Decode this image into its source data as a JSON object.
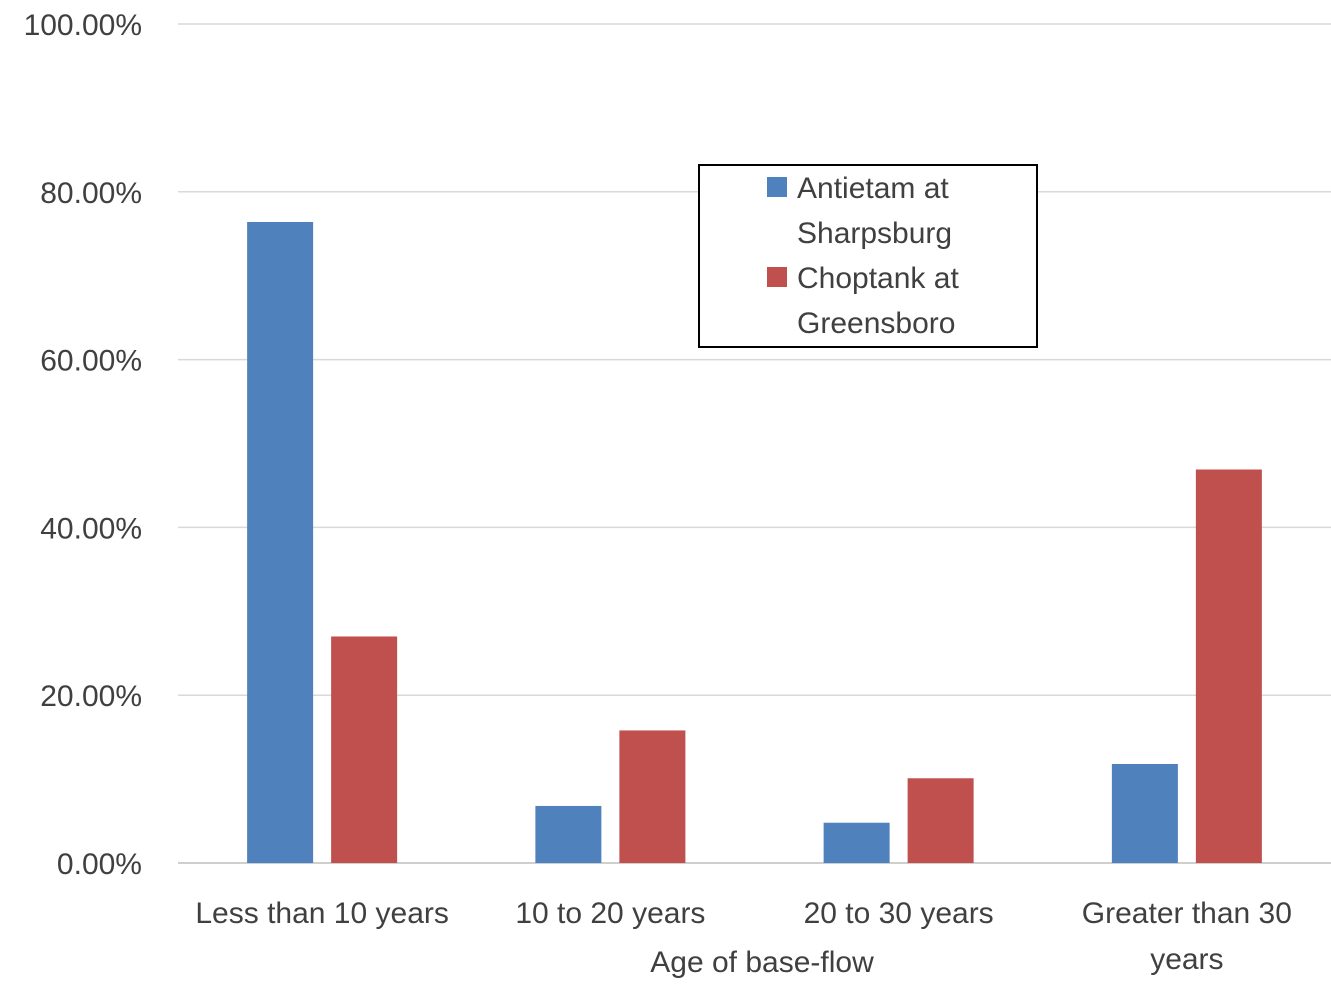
{
  "chart_data": {
    "type": "bar",
    "title": "",
    "xlabel": "Age of base-flow",
    "ylabel": "",
    "categories": [
      [
        "Less than 10 years"
      ],
      [
        "10 to 20 years"
      ],
      [
        "20 to 30 years"
      ],
      [
        "Greater than 30",
        "years"
      ]
    ],
    "series": [
      {
        "name": [
          "Antietam at",
          "Sharpsburg"
        ],
        "color": "#4F81BD",
        "values": [
          76.4,
          6.8,
          4.8,
          11.8
        ]
      },
      {
        "name": [
          "Choptank at",
          "Greensboro"
        ],
        "color": "#C0504D",
        "values": [
          27.0,
          15.8,
          10.1,
          46.9
        ]
      }
    ],
    "ylim": [
      0,
      100
    ],
    "yticks": [
      0,
      20,
      40,
      60,
      80,
      100
    ],
    "ytick_labels": [
      "0.00%",
      "20.00%",
      "40.00%",
      "60.00%",
      "80.00%",
      "100.00%"
    ],
    "grid": true,
    "legend_position": "top-center"
  }
}
